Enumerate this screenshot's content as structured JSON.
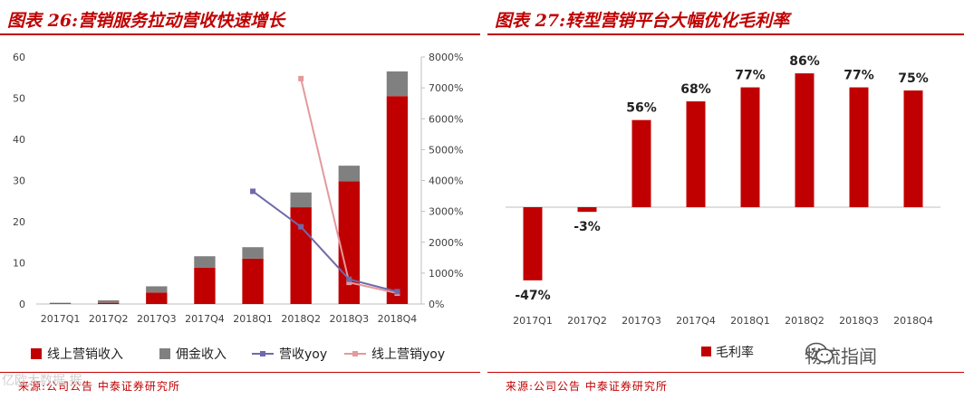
{
  "left": {
    "title": "图表 26:营销服务拉动营收快速增长",
    "source": "来源:公司公告 中泰证券研究所"
  },
  "right": {
    "title": "图表 27:转型营销平台大幅优化毛利率",
    "source": "来源:公司公告 中泰证券研究所"
  },
  "watermarks": {
    "left": "亿欧大数据 据",
    "right": "物流指闻"
  },
  "colors": {
    "red": "#c00000",
    "gray": "#808080",
    "purple": "#6f6aa8",
    "pink": "#e4999b"
  },
  "chart_data": [
    {
      "type": "bar",
      "stacked": true,
      "categories": [
        "2017Q1",
        "2017Q2",
        "2017Q3",
        "2017Q4",
        "2018Q1",
        "2018Q2",
        "2018Q3",
        "2018Q4"
      ],
      "ylim": [
        0,
        60
      ],
      "yticks": [
        0,
        10,
        20,
        30,
        40,
        50,
        60
      ],
      "y2lim": [
        0,
        8000
      ],
      "y2ticks": [
        "0%",
        "1000%",
        "2000%",
        "3000%",
        "4000%",
        "5000%",
        "6000%",
        "7000%",
        "8000%"
      ],
      "series": [
        {
          "name": "线上营销收入",
          "kind": "bar",
          "values": [
            0.1,
            0.3,
            2.8,
            8.8,
            11.0,
            23.5,
            29.8,
            50.5
          ]
        },
        {
          "name": "佣金收入",
          "kind": "bar",
          "values": [
            0.2,
            0.6,
            1.5,
            2.8,
            2.8,
            3.6,
            3.8,
            6.0
          ]
        },
        {
          "name": "营收yoy",
          "kind": "line",
          "axis": "right",
          "values": [
            null,
            null,
            null,
            null,
            3650,
            2500,
            800,
            400
          ]
        },
        {
          "name": "线上营销yoy",
          "kind": "line",
          "axis": "right",
          "values": [
            null,
            null,
            null,
            null,
            null,
            7300,
            700,
            350
          ]
        }
      ]
    },
    {
      "type": "bar",
      "categories": [
        "2017Q1",
        "2017Q2",
        "2017Q3",
        "2017Q4",
        "2018Q1",
        "2018Q2",
        "2018Q3",
        "2018Q4"
      ],
      "series": [
        {
          "name": "毛利率",
          "values": [
            -47,
            -3,
            56,
            68,
            77,
            86,
            77,
            75
          ]
        }
      ],
      "data_labels": [
        "-47%",
        "-3%",
        "56%",
        "68%",
        "77%",
        "86%",
        "77%",
        "75%"
      ],
      "ylim": [
        -55,
        95
      ]
    }
  ]
}
